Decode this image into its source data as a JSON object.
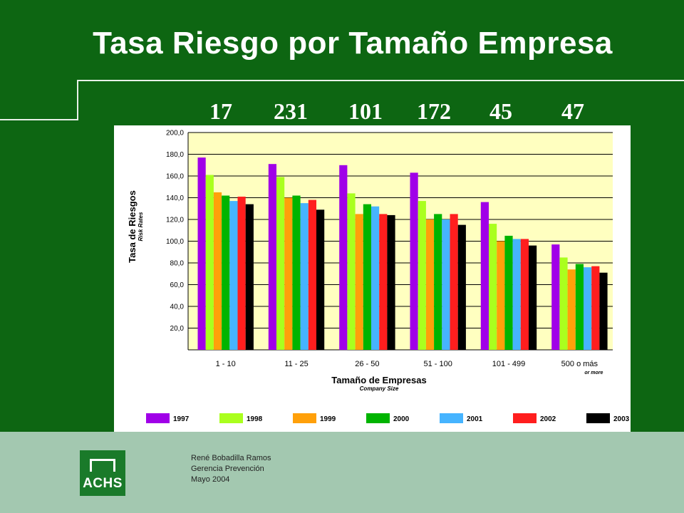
{
  "slide": {
    "title": "Tasa Riesgo por Tamaño Empresa",
    "counts": [
      "17",
      "231",
      "101",
      "172",
      "45",
      "47"
    ],
    "footer": {
      "author": "René Bobadilla Ramos",
      "department": "Gerencia Prevención",
      "date": "Mayo 2004"
    },
    "logo_text": "ACHS"
  },
  "chart_data": {
    "type": "bar",
    "title": "",
    "ylabel": "Tasa de Riesgos",
    "ylabel_sub": "Risk Rates",
    "xlabel": "Tamaño de Empresas",
    "xlabel_sub": "Company Size",
    "ylim": [
      0,
      200
    ],
    "yticks": [
      "20,0",
      "40,0",
      "60,0",
      "80,0",
      "100,0",
      "120,0",
      "140,0",
      "160,0",
      "180,0",
      "200,0"
    ],
    "categories": [
      "1 - 10",
      "11 - 25",
      "26 - 50",
      "51 - 100",
      "101 - 499",
      "500 o más"
    ],
    "category_sub": [
      "",
      "",
      "",
      "",
      "",
      "or more"
    ],
    "grid": true,
    "legend_position": "bottom",
    "series": [
      {
        "name": "1997",
        "color": "#a000e8",
        "values": [
          177,
          171,
          170,
          163,
          136,
          97
        ]
      },
      {
        "name": "1998",
        "color": "#aaff1e",
        "values": [
          161,
          159,
          144,
          137,
          116,
          85
        ]
      },
      {
        "name": "1999",
        "color": "#ffa00a",
        "values": [
          145,
          140,
          125,
          120,
          100,
          74
        ]
      },
      {
        "name": "2000",
        "color": "#00b400",
        "values": [
          142,
          142,
          134,
          125,
          105,
          79
        ]
      },
      {
        "name": "2001",
        "color": "#46b4ff",
        "values": [
          137,
          135,
          132,
          120,
          102,
          76
        ]
      },
      {
        "name": "2002",
        "color": "#ff1e1e",
        "values": [
          141,
          138,
          125,
          125,
          102,
          77
        ]
      },
      {
        "name": "2003",
        "color": "#000000",
        "values": [
          134,
          129,
          124,
          115,
          96,
          71
        ]
      }
    ]
  }
}
